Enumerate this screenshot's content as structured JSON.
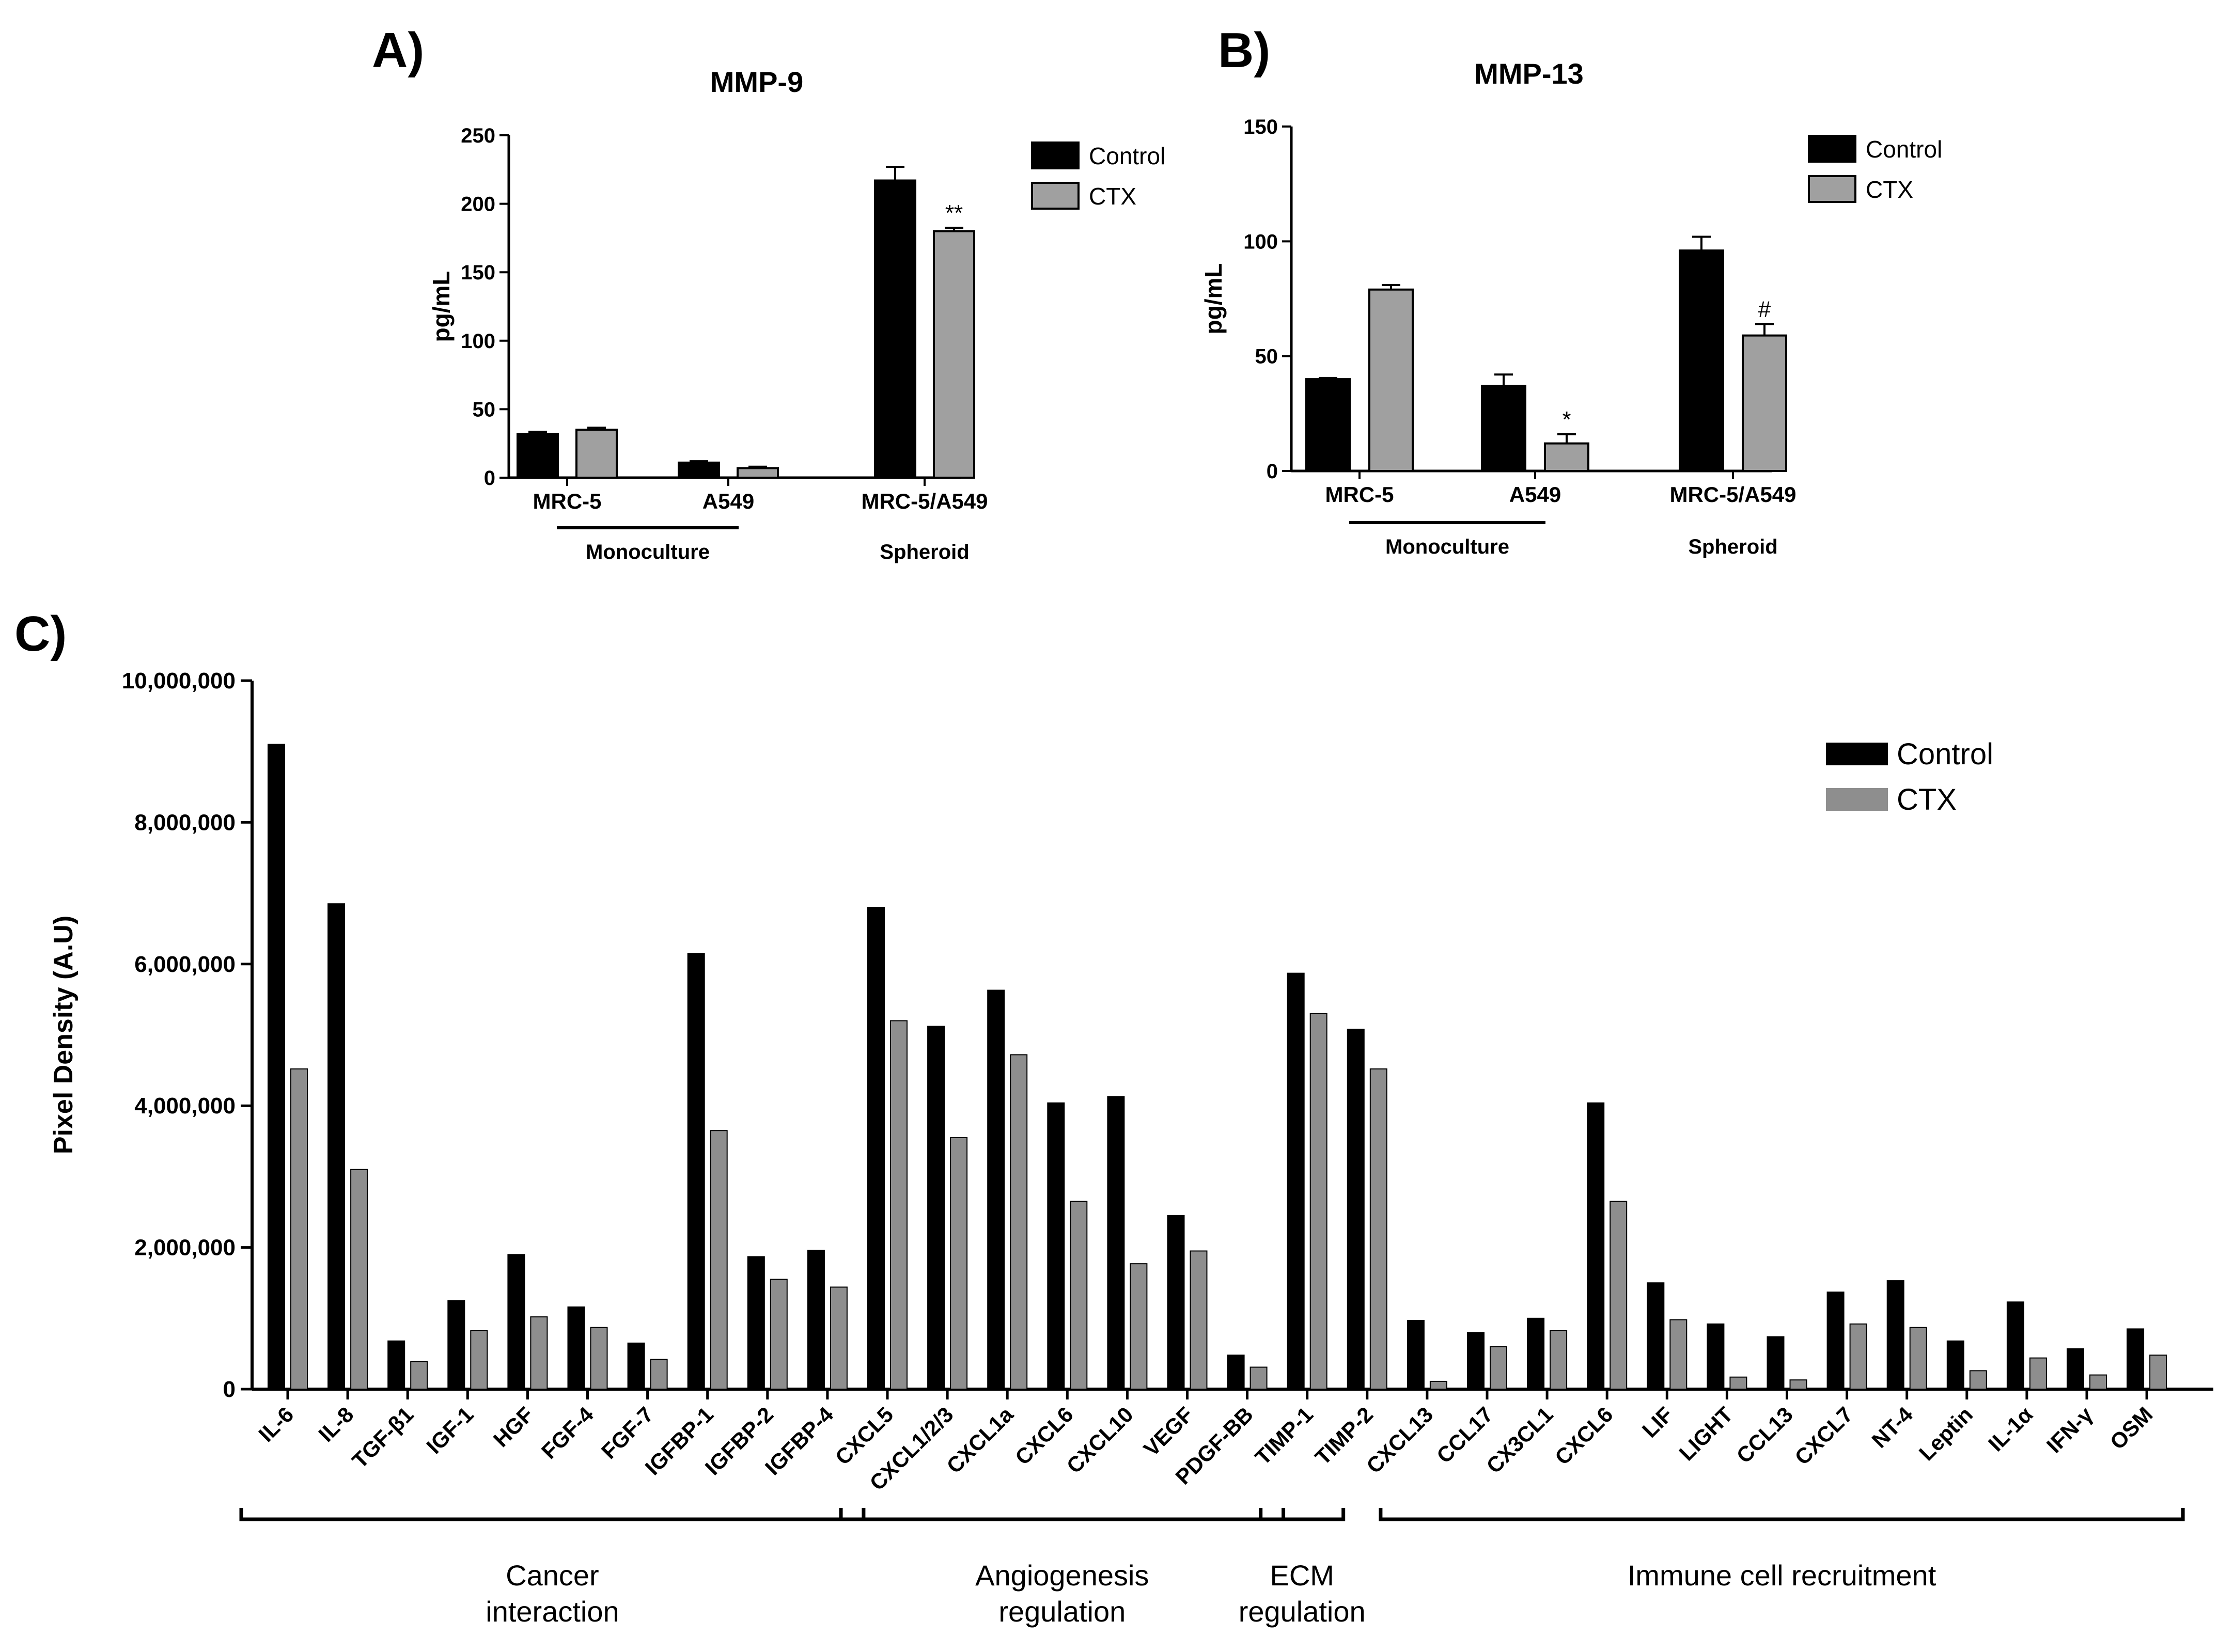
{
  "chart_data": [
    {
      "panel": "A)",
      "type": "bar",
      "title": "MMP-9",
      "ylabel": "pg/mL",
      "xlabel": "",
      "ylim": [
        0,
        250
      ],
      "yticks": [
        "0",
        "50",
        "100",
        "150",
        "200",
        "250"
      ],
      "categories": [
        "MRC-5",
        "A549",
        "MRC-5/A549"
      ],
      "series": [
        {
          "name": "Control",
          "color": "#000000",
          "values": [
            32,
            11,
            217
          ],
          "errors": [
            1.5,
            1,
            10
          ]
        },
        {
          "name": "CTX",
          "color": "#a0a0a0",
          "values": [
            35,
            7,
            180
          ],
          "errors": [
            1.5,
            1,
            2.5
          ]
        }
      ],
      "annotations": [
        {
          "category": "MRC-5/A549",
          "series": "CTX",
          "text": "**"
        }
      ],
      "groups": [
        {
          "label": "Monoculture",
          "categories": [
            "MRC-5",
            "A549"
          ],
          "underline": true
        },
        {
          "label": "Spheroid",
          "categories": [
            "MRC-5/A549"
          ],
          "underline": false
        }
      ],
      "legend": "top-right"
    },
    {
      "panel": "B)",
      "type": "bar",
      "title": "MMP-13",
      "ylabel": "pg/mL",
      "xlabel": "",
      "ylim": [
        0,
        150
      ],
      "yticks": [
        "0",
        "50",
        "100",
        "150"
      ],
      "categories": [
        "MRC-5",
        "A549",
        "MRC-5/A549"
      ],
      "series": [
        {
          "name": "Control",
          "color": "#000000",
          "values": [
            40,
            37,
            96
          ],
          "errors": [
            0.5,
            5,
            6
          ]
        },
        {
          "name": "CTX",
          "color": "#a0a0a0",
          "values": [
            79,
            12,
            59
          ],
          "errors": [
            2,
            4,
            5
          ]
        }
      ],
      "annotations": [
        {
          "category": "A549",
          "series": "CTX",
          "text": "*"
        },
        {
          "category": "MRC-5/A549",
          "series": "CTX",
          "text": "#"
        }
      ],
      "groups": [
        {
          "label": "Monoculture",
          "categories": [
            "MRC-5",
            "A549"
          ],
          "underline": true
        },
        {
          "label": "Spheroid",
          "categories": [
            "MRC-5/A549"
          ],
          "underline": false
        }
      ],
      "legend": "top-right"
    },
    {
      "panel": "C)",
      "type": "bar",
      "title": "",
      "ylabel": "Pixel Density (A.U)",
      "xlabel": "",
      "ylim": [
        0,
        10000000
      ],
      "yticks": [
        "0",
        "2,000,000",
        "4,000,000",
        "6,000,000",
        "8,000,000",
        "10,000,000"
      ],
      "categories": [
        "IL-6",
        "IL-8",
        "TGF-β1",
        "IGF-1",
        "HGF",
        "FGF-4",
        "FGF-7",
        "IGFBP-1",
        "IGFBP-2",
        "IGFBP-4",
        "CXCL5",
        "CXCL1/2/3",
        "CXCL1a",
        "CXCL6",
        "CXCL10",
        "VEGF",
        "PDGF-BB",
        "TIMP-1",
        "TIMP-2",
        "CXCL13",
        "CCL17",
        "CX3CL1",
        "CXCL6",
        "LIF",
        "LIGHT",
        "CCL13",
        "CXCL7",
        "NT-4",
        "Leptin",
        "IL-1α",
        "IFN-γ",
        "OSM"
      ],
      "series": [
        {
          "name": "Control",
          "color": "#000000",
          "values": [
            9100000,
            6850000,
            680000,
            1250000,
            1900000,
            1160000,
            650000,
            6150000,
            1870000,
            1960000,
            6800000,
            5120000,
            5630000,
            4040000,
            4130000,
            2450000,
            480000,
            5870000,
            5080000,
            970000,
            800000,
            1000000,
            4040000,
            1500000,
            920000,
            740000,
            1370000,
            1530000,
            680000,
            1230000,
            570000,
            850000
          ]
        },
        {
          "name": "CTX",
          "color": "#8e8e8e",
          "values": [
            4520000,
            3100000,
            390000,
            830000,
            1020000,
            870000,
            420000,
            3650000,
            1550000,
            1440000,
            5200000,
            3550000,
            4720000,
            2650000,
            1770000,
            1950000,
            310000,
            5300000,
            4520000,
            110000,
            600000,
            830000,
            2650000,
            980000,
            170000,
            130000,
            920000,
            870000,
            260000,
            440000,
            200000,
            480000
          ]
        }
      ],
      "groups": [
        {
          "label": "Cancer interaction",
          "lines": [
            "Cancer",
            "interaction"
          ],
          "from": 0,
          "to": 9
        },
        {
          "label": "Angiogenesis regulation",
          "lines": [
            "Angiogenesis",
            "regulation"
          ],
          "from": 10,
          "to": 16
        },
        {
          "label": "ECM regulation",
          "lines": [
            "ECM",
            "regulation"
          ],
          "from": 17,
          "to": 17
        },
        {
          "label": "Immune cell recruitment",
          "lines": [
            "Immune cell recruitment"
          ],
          "from": 19,
          "to": 31
        }
      ],
      "legend": "top-right"
    }
  ]
}
